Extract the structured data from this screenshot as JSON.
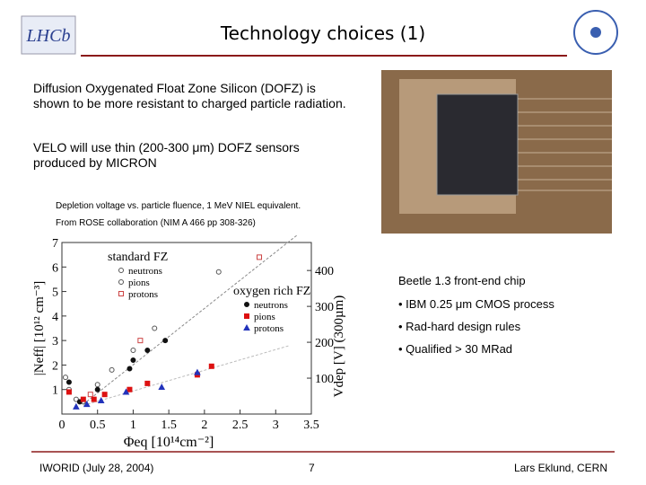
{
  "header": {
    "title": "Technology choices (1)",
    "logo": "LHCb"
  },
  "body": {
    "paragraphs": [
      [
        "Diffusion Oxygenated Float Zone Silicon (DOFZ) is",
        "shown to be more resistant to charged particle radiation."
      ],
      [
        "VELO will use thin (200-300 μm) DOFZ sensors",
        "produced by MICRON"
      ]
    ],
    "figure_caption": [
      "Depletion voltage vs. particle fluence, 1 MeV NIEL equivalent.",
      "From ROSE collaboration (NIM A 466 pp 308-326)"
    ]
  },
  "chip": {
    "caption": "Beetle 1.3 front-end chip",
    "bullets": [
      "• IBM 0.25 μm CMOS process",
      "• Rad-hard design rules",
      "• Qualified > 30 MRad"
    ]
  },
  "footer": {
    "left": "IWORID (July 28, 2004)",
    "page": "7",
    "right": "Lars Eklund, CERN"
  },
  "chart_data": {
    "type": "scatter",
    "x_label": "Φeq [10¹⁴cm⁻²]",
    "y_label": "|Neff| [10¹² cm⁻³]",
    "y2_label": "Vdep [V]  (300µm)",
    "xlim": [
      0,
      3.5
    ],
    "xticks": [
      0,
      0.5,
      1,
      1.5,
      2,
      2.5,
      3,
      3.5
    ],
    "ylim": [
      0,
      7
    ],
    "yticks": [
      1,
      2,
      3,
      4,
      5,
      6,
      7
    ],
    "y2lim": [
      0,
      478
    ],
    "y2ticks": [
      100,
      200,
      300,
      400
    ],
    "groups": [
      {
        "name": "standard FZ",
        "filled": false,
        "series": [
          {
            "name": "neutrons",
            "color": "#555555",
            "marker": "circle",
            "x": [
              0.05,
              0.2,
              0.5,
              1.0,
              1.3
            ],
            "values": [
              1.5,
              0.6,
              1.2,
              2.6,
              3.5
            ]
          },
          {
            "name": "pions",
            "color": "#555555",
            "marker": "circle",
            "x": [
              0.1,
              0.3,
              0.7,
              2.2
            ],
            "values": [
              1.0,
              0.5,
              1.8,
              5.8
            ]
          },
          {
            "name": "protons",
            "color": "#cc4444",
            "marker": "square",
            "x": [
              0.4,
              1.1,
              2.77
            ],
            "values": [
              0.8,
              3.0,
              6.4
            ]
          }
        ]
      },
      {
        "name": "oxygen rich FZ",
        "filled": true,
        "series": [
          {
            "name": "neutrons",
            "color": "#111111",
            "marker": "circle",
            "x": [
              0.1,
              0.25,
              0.5,
              0.95,
              1.0,
              1.2,
              1.45
            ],
            "values": [
              1.3,
              0.5,
              1.0,
              1.85,
              2.2,
              2.6,
              3.0
            ]
          },
          {
            "name": "pions",
            "color": "#dd1111",
            "marker": "square",
            "x": [
              0.1,
              0.3,
              0.45,
              0.6,
              0.95,
              1.2,
              1.9,
              2.1
            ],
            "values": [
              0.9,
              0.6,
              0.6,
              0.8,
              1.0,
              1.25,
              1.6,
              1.95
            ]
          },
          {
            "name": "protons",
            "color": "#2233bb",
            "marker": "triangle",
            "x": [
              0.2,
              0.35,
              0.55,
              0.9,
              1.4,
              1.9
            ],
            "values": [
              0.3,
              0.4,
              0.55,
              0.9,
              1.1,
              1.7
            ]
          }
        ]
      }
    ]
  }
}
